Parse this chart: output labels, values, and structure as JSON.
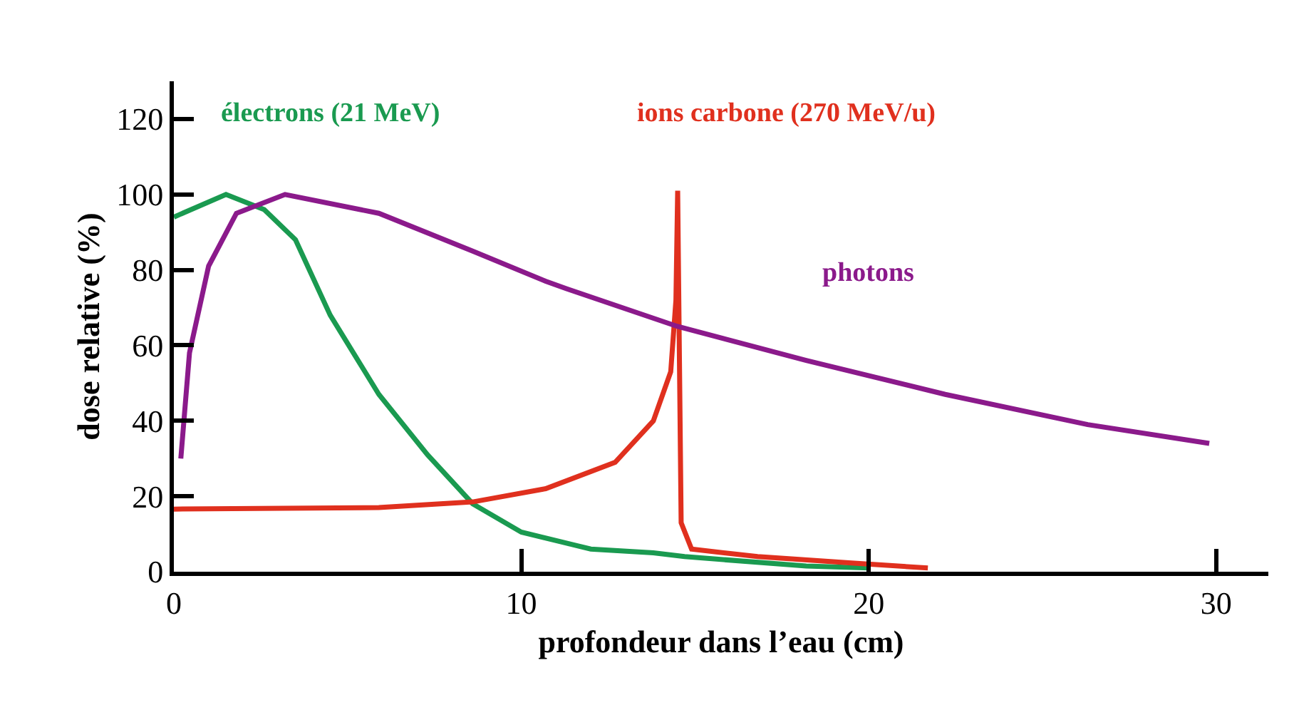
{
  "chart_data": {
    "type": "line",
    "xlabel": "profondeur dans l’eau (cm)",
    "ylabel": "dose relative (%)",
    "xlim": [
      0,
      31.5
    ],
    "xticks": [
      0,
      10,
      20,
      30
    ],
    "ylim": [
      0,
      130
    ],
    "yticks": [
      0,
      20,
      40,
      60,
      80,
      100,
      120
    ],
    "grid": false,
    "legend": false,
    "marker": "none",
    "line_style": "solid",
    "series": [
      {
        "name": "électrons (21 MeV)",
        "color": "#1a9a50",
        "x": [
          0,
          1.5,
          2.6,
          3.5,
          4.5,
          5.9,
          7.3,
          8.6,
          10.0,
          12.0,
          13.8,
          14.7,
          18.2,
          20
        ],
        "values": [
          94,
          100,
          96,
          88,
          68,
          47,
          31,
          18,
          10.5,
          6,
          5,
          4,
          1.5,
          1
        ]
      },
      {
        "name": "ions carbone (270 MeV/u)",
        "color": "#e0301e",
        "x": [
          0,
          5.9,
          8.6,
          10.7,
          12.7,
          13.8,
          14.3,
          14.45,
          14.5,
          14.6,
          14.9,
          16.8,
          19.5,
          21.7
        ],
        "values": [
          16.6,
          17,
          18.5,
          22,
          29,
          40,
          53,
          72,
          101,
          13,
          6,
          4,
          2.3,
          1
        ]
      },
      {
        "name": "photons",
        "color": "#8b1a8b",
        "x": [
          0.2,
          0.45,
          1.0,
          1.8,
          3.2,
          5.9,
          8.6,
          10.7,
          11.3,
          14.5,
          18.2,
          22.2,
          26.3,
          29.8
        ],
        "values": [
          30,
          58,
          81,
          95,
          100,
          95,
          85,
          77,
          75,
          65,
          56,
          47,
          39,
          34
        ]
      }
    ]
  }
}
